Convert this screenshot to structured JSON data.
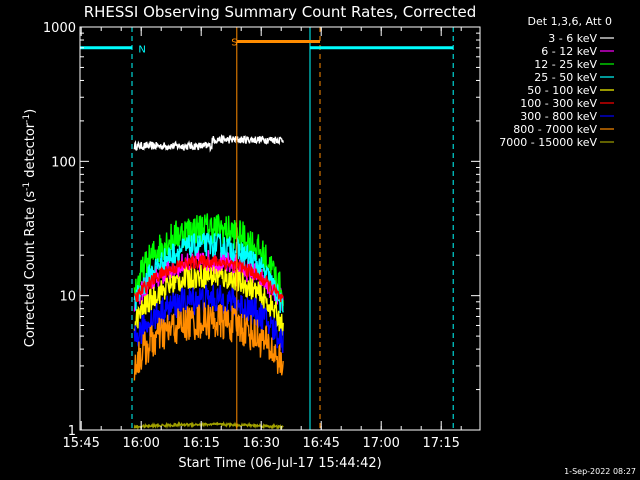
{
  "chart_data": {
    "type": "line",
    "title": "RHESSI Observing Summary Count Rates, Corrected",
    "xlabel": "Start Time (06-Jul-17 15:44:42)",
    "ylabel_main": "Corrected Count Rate (s",
    "ylabel_sup1": "-1",
    "ylabel_mid": " detector",
    "ylabel_sup2": "-1",
    "ylabel_end": ")",
    "y_scale": "log",
    "ylim": [
      1,
      1000
    ],
    "y_ticks": [
      {
        "value": 1,
        "label": "1"
      },
      {
        "value": 10,
        "label": "10"
      },
      {
        "value": 100,
        "label": "100"
      },
      {
        "value": 1000,
        "label": "1000"
      }
    ],
    "x_unit": "minutes after 15:44:42",
    "xlim": [
      0,
      100
    ],
    "x_ticks": [
      {
        "value": 0.3,
        "label": "15:45"
      },
      {
        "value": 15.3,
        "label": "16:00"
      },
      {
        "value": 30.3,
        "label": "16:15"
      },
      {
        "value": 45.3,
        "label": "16:30"
      },
      {
        "value": 60.3,
        "label": "16:45"
      },
      {
        "value": 75.3,
        "label": "17:00"
      },
      {
        "value": 90.3,
        "label": "17:15"
      }
    ],
    "legend_title": "Det 1,3,6, Att 0",
    "legend_position": "top-right, outside plot",
    "series": [
      {
        "name": "3 - 6 keV",
        "color": "#ffffff",
        "start": 13.6,
        "end": 50.8,
        "profile": "flat",
        "base": 130,
        "stepAt": 33.0,
        "stepLevel": 145,
        "noise": 0.03
      },
      {
        "name": "6 - 12 keV",
        "color": "#ff00ff",
        "start": 13.6,
        "end": 50.8,
        "profile": "arch",
        "edge": 9,
        "peak": 18,
        "peakAt": 32,
        "noise": 0.09
      },
      {
        "name": "12 - 25 keV",
        "color": "#00ff00",
        "start": 13.6,
        "end": 50.8,
        "profile": "arch",
        "edge": 10,
        "peak": 32,
        "peakAt": 32,
        "noise": 0.12
      },
      {
        "name": "25 - 50 keV",
        "color": "#00ffff",
        "start": 13.6,
        "end": 50.8,
        "profile": "arch",
        "edge": 8,
        "peak": 24,
        "peakAt": 32,
        "noise": 0.09
      },
      {
        "name": "50 - 100 keV",
        "color": "#ffff00",
        "start": 13.6,
        "end": 50.8,
        "profile": "arch",
        "edge": 6,
        "peak": 14,
        "peakAt": 32,
        "noise": 0.09
      },
      {
        "name": "100 - 300 keV",
        "color": "#ff0000",
        "start": 13.6,
        "end": 50.8,
        "profile": "arch",
        "edge": 9,
        "peak": 18,
        "peakAt": 32,
        "noise": 0.05
      },
      {
        "name": "300 - 800 keV",
        "color": "#0000ff",
        "start": 13.6,
        "end": 50.8,
        "profile": "arch",
        "edge": 4.5,
        "peak": 9.5,
        "peakAt": 32,
        "noise": 0.11
      },
      {
        "name": "800 - 7000 keV",
        "color": "#ff8c00",
        "start": 13.6,
        "end": 50.8,
        "profile": "arch",
        "edge": 3,
        "peak": 6.5,
        "peakAt": 32,
        "noise": 0.14
      },
      {
        "name": "7000 - 15000 keV",
        "color": "#a0a000",
        "start": 13.6,
        "end": 50.8,
        "profile": "arch",
        "edge": 1.05,
        "peak": 1.1,
        "peakAt": 32,
        "noise": 0.01
      }
    ],
    "annotations": {
      "night_bars": [
        {
          "from": 0,
          "to": 13.0,
          "value": 700,
          "color": "#00ffff"
        },
        {
          "from": 57.5,
          "to": 93.3,
          "value": 700,
          "color": "#00ffff"
        }
      ],
      "saa_bar": {
        "from": 39.2,
        "to": 60.0,
        "value": 780,
        "color": "#ff8c00"
      },
      "labels": [
        {
          "text": "N",
          "x": 14.6,
          "value": 690,
          "color": "#00ffff"
        },
        {
          "text": "S",
          "x": 37.8,
          "value": 780,
          "color": "#ff8c00"
        }
      ],
      "vlines": [
        {
          "x": 0,
          "color": "#00ffff",
          "dash": false
        },
        {
          "x": 13.0,
          "color": "#00ffff",
          "dash": true
        },
        {
          "x": 39.2,
          "color": "#ff8c00",
          "dash": false
        },
        {
          "x": 57.5,
          "color": "#00ffff",
          "dash": false
        },
        {
          "x": 60.0,
          "color": "#ff8c00",
          "dash": true
        },
        {
          "x": 93.3,
          "color": "#00ffff",
          "dash": true
        }
      ]
    },
    "timestamp": "1-Sep-2022 08:27"
  }
}
